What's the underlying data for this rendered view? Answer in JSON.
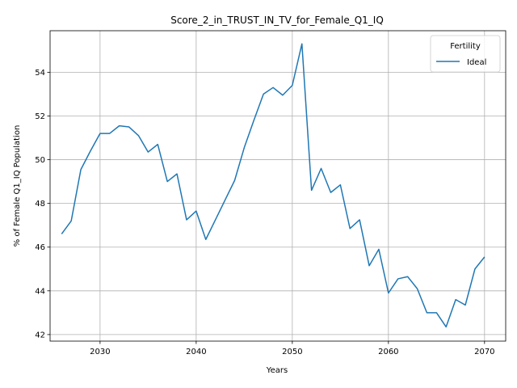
{
  "chart_data": {
    "type": "line",
    "title": "Score_2_in_TRUST_IN_TV_for_Female_Q1_IQ",
    "xlabel": "Years",
    "ylabel": "% of Female Q1_IQ Population",
    "xlim": [
      2024.8,
      2072.2
    ],
    "ylim": [
      41.7,
      55.9
    ],
    "xticks": [
      2030,
      2040,
      2050,
      2060,
      2070
    ],
    "yticks": [
      42,
      44,
      46,
      48,
      50,
      52,
      54
    ],
    "grid": true,
    "legend": {
      "title": "Fertility",
      "position": "top-right"
    },
    "series": [
      {
        "name": "Ideal",
        "color": "#1f77b4",
        "x": [
          2026,
          2027,
          2028,
          2029,
          2030,
          2031,
          2032,
          2033,
          2034,
          2035,
          2036,
          2037,
          2038,
          2039,
          2040,
          2041,
          2042,
          2043,
          2044,
          2045,
          2046,
          2047,
          2048,
          2049,
          2050,
          2051,
          2052,
          2053,
          2054,
          2055,
          2056,
          2057,
          2058,
          2059,
          2060,
          2061,
          2062,
          2063,
          2064,
          2065,
          2066,
          2067,
          2068,
          2069,
          2070
        ],
        "values": [
          46.6,
          47.2,
          49.55,
          50.4,
          51.2,
          51.2,
          51.55,
          51.5,
          51.1,
          50.35,
          50.7,
          49.0,
          49.35,
          47.25,
          47.65,
          46.35,
          47.25,
          48.15,
          49.05,
          50.55,
          51.8,
          53.0,
          53.3,
          52.95,
          53.4,
          55.3,
          48.6,
          49.6,
          48.5,
          48.85,
          46.85,
          47.25,
          45.15,
          45.9,
          43.9,
          44.55,
          44.65,
          44.1,
          43.0,
          43.0,
          42.35,
          43.6,
          43.35,
          45.0,
          45.55
        ]
      }
    ]
  }
}
